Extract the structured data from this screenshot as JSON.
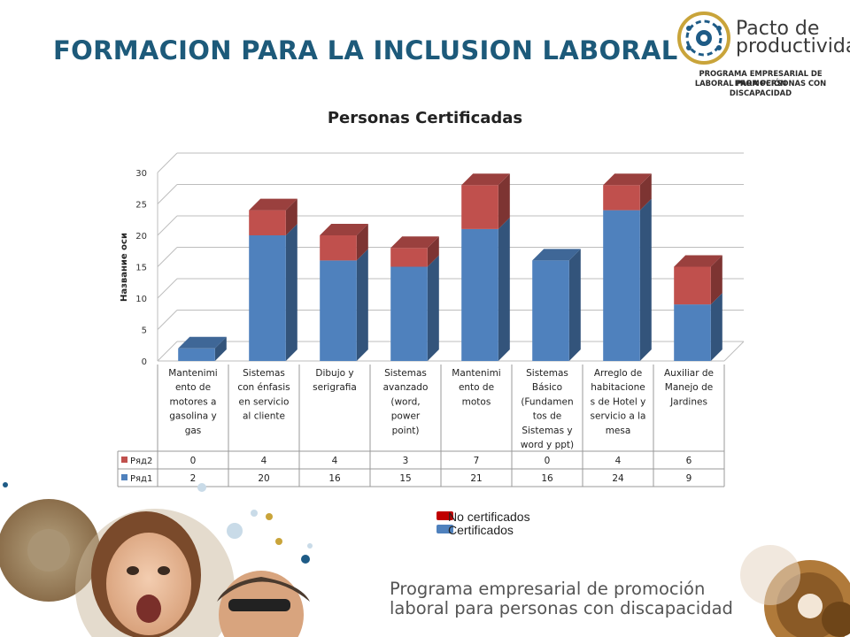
{
  "header": {
    "title": "FORMACION PARA LA INCLUSION LABORAL"
  },
  "logo": {
    "line1": "Pacto de",
    "line2": "productividad",
    "sub1": "PROGRAMA EMPRESARIAL DE PROMOCIÓN",
    "sub2": "LABORAL PARA PERSONAS CON DISCAPACIDAD"
  },
  "chart_data": {
    "type": "bar",
    "stacked": true,
    "three_d": true,
    "title": "Personas Certificadas",
    "ylabel": "Название оси",
    "xlabel": "",
    "ylim": [
      0,
      30
    ],
    "yticks": [
      0,
      5,
      10,
      15,
      20,
      25,
      30
    ],
    "grid": true,
    "categories": [
      "Mantenimiento de motores a gasolina y gas",
      "Sistemas con énfasis en servicio al cliente",
      "Dibujo y serigrafia",
      "Sistemas avanzado (word, power point)",
      "Mantenimiento de motos",
      "Sistemas Básico (Fundamentos de Sistemas y word y ppt)",
      "Arreglo de habitaciones de Hotel y servicio a la mesa",
      "Auxiliar de Manejo de Jardines"
    ],
    "category_lines": [
      [
        "Mantenimi",
        "ento de",
        "motores a",
        "gasolina y",
        "gas"
      ],
      [
        "Sistemas",
        "con énfasis",
        "en servicio",
        "al cliente"
      ],
      [
        "Dibujo y",
        "serigrafia"
      ],
      [
        "Sistemas",
        "avanzado",
        "(word,",
        "power",
        "point)"
      ],
      [
        "Mantenimi",
        "ento de",
        "motos"
      ],
      [
        "Sistemas",
        "Básico",
        "(Fundamen",
        "tos de",
        "Sistemas y",
        "word y ppt)"
      ],
      [
        "Arreglo de",
        "habitacione",
        "s de Hotel y",
        "servicio a la",
        "mesa"
      ],
      [
        "Auxiliar de",
        "Manejo de",
        "Jardines"
      ]
    ],
    "series": [
      {
        "name": "Ряд1",
        "values": [
          2,
          20,
          16,
          15,
          21,
          16,
          24,
          9
        ],
        "color": "#4f81bd"
      },
      {
        "name": "Ряд2",
        "values": [
          0,
          4,
          4,
          3,
          7,
          0,
          4,
          6
        ],
        "color": "#c0504d"
      }
    ],
    "table_rows": [
      {
        "name": "Ряд2",
        "color": "#c0504d",
        "values": [
          "0",
          "4",
          "4",
          "3",
          "7",
          "0",
          "4",
          "6"
        ]
      },
      {
        "name": "Ряд1",
        "color": "#4f81bd",
        "values": [
          "2",
          "20",
          "16",
          "15",
          "21",
          "16",
          "24",
          "9"
        ]
      }
    ]
  },
  "legend": {
    "items": [
      {
        "label": "No certificados",
        "color": "#c00000"
      },
      {
        "label": "Certificados",
        "color": "#4f81bd"
      }
    ]
  },
  "footer": {
    "line1": "Programa empresarial de promoción",
    "line2": "laboral para personas con discapacidad"
  }
}
